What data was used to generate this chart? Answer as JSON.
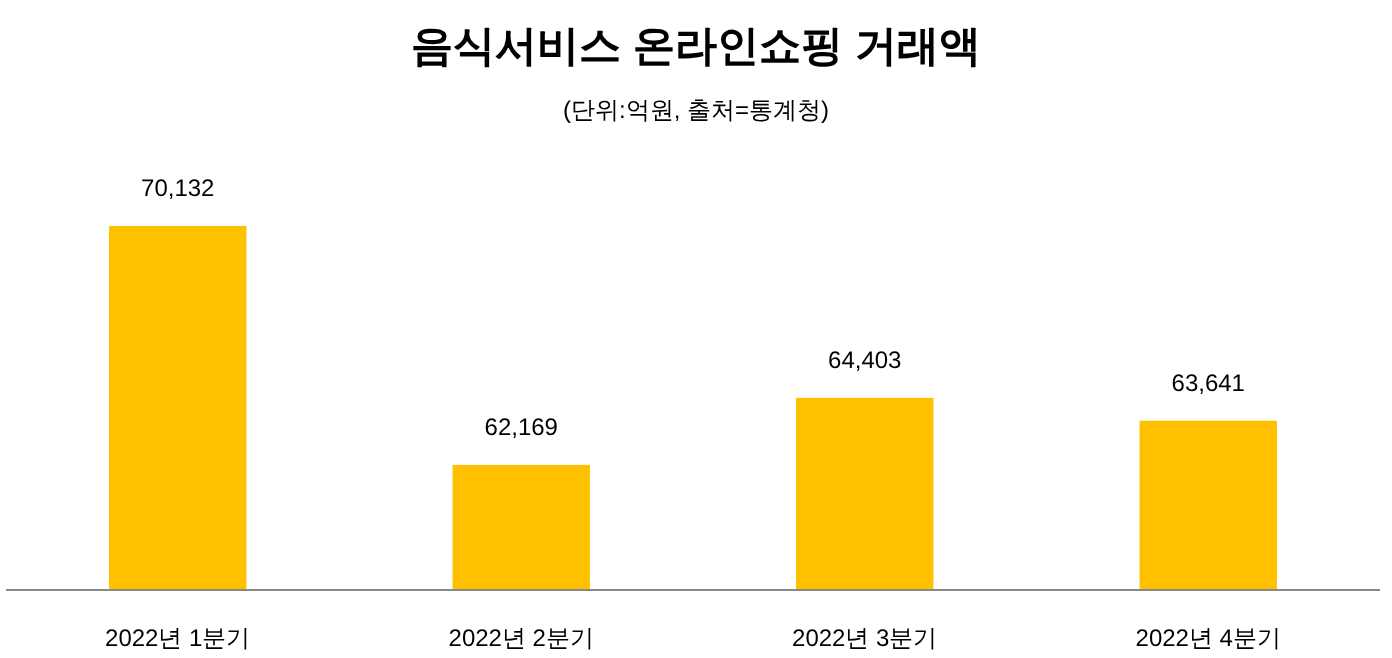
{
  "chart_data": {
    "type": "bar",
    "title": "음식서비스 온라인쇼핑 거래액",
    "subtitle": "(단위:억원, 출처=통계청)",
    "categories": [
      "2022년 1분기",
      "2022년 2분기",
      "2022년 3분기",
      "2022년 4분기"
    ],
    "values": [
      70132,
      62169,
      64403,
      63641
    ],
    "value_labels": [
      "70,132",
      "62,169",
      "64,403",
      "63,641"
    ],
    "color": "#ffc000",
    "ylim": [
      58000,
      70132
    ],
    "tick_labels": "x"
  }
}
